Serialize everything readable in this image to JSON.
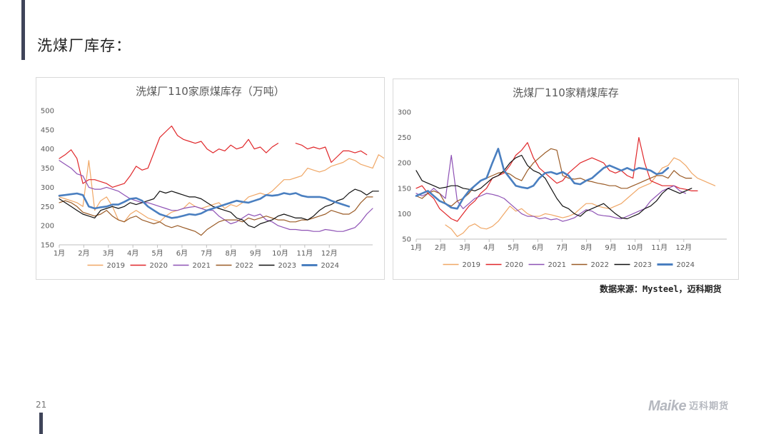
{
  "page": {
    "title": "洗煤厂库存：",
    "source": "数据来源：Mysteel，迈科期货",
    "page_number": "21",
    "logo_text": "Maike",
    "logo_cn": "迈科期货"
  },
  "colors": {
    "2019": "#f0a766",
    "2020": "#e0272a",
    "2021": "#8e52b5",
    "2022": "#9a5b26",
    "2023": "#111111",
    "2024": "#4a7fc0"
  },
  "chart_data": [
    {
      "type": "line",
      "title": "洗煤厂110家原煤库存（万吨）",
      "x_tick_labels": [
        "1月",
        "2月",
        "3月",
        "4月",
        "5月",
        "6月",
        "7月",
        "8月",
        "9月",
        "10月",
        "11月",
        "12月"
      ],
      "ylim": [
        150,
        500
      ],
      "yticks": [
        150,
        200,
        250,
        300,
        350,
        400,
        450,
        500
      ],
      "grid": false,
      "legend": "bottom",
      "series": [
        {
          "name": "2019",
          "color": "#f0a766",
          "width": 1.2,
          "values": [
            275,
            270,
            265,
            260,
            250,
            370,
            240,
            265,
            275,
            250,
            215,
            210,
            230,
            240,
            230,
            220,
            215,
            210,
            225,
            235,
            240,
            245,
            260,
            250,
            245,
            250,
            255,
            260,
            245,
            255,
            250,
            260,
            275,
            280,
            285,
            280,
            290,
            305,
            320,
            320,
            325,
            330,
            350,
            345,
            340,
            345,
            355,
            360,
            365,
            375,
            370,
            360,
            355,
            350,
            385,
            375
          ]
        },
        {
          "name": "2020",
          "color": "#e0272a",
          "width": 1.2,
          "values": [
            375,
            385,
            398,
            375,
            310,
            320,
            320,
            315,
            310,
            300,
            305,
            310,
            330,
            355,
            345,
            350,
            390,
            430,
            445,
            460,
            435,
            425,
            420,
            415,
            420,
            400,
            390,
            400,
            395,
            410,
            400,
            405,
            425,
            400,
            405,
            390,
            405,
            415,
            null,
            null,
            415,
            410,
            400,
            405,
            400,
            405,
            365,
            380,
            395,
            395,
            390,
            395,
            385
          ]
        },
        {
          "name": "2021",
          "color": "#8e52b5",
          "width": 1.2,
          "values": [
            370,
            360,
            350,
            335,
            330,
            300,
            295,
            295,
            300,
            295,
            290,
            280,
            270,
            265,
            260,
            260,
            255,
            250,
            245,
            240,
            240,
            245,
            248,
            250,
            245,
            240,
            240,
            225,
            215,
            205,
            210,
            220,
            230,
            225,
            230,
            215,
            210,
            200,
            195,
            190,
            190,
            188,
            188,
            185,
            185,
            190,
            188,
            185,
            185,
            190,
            195,
            210,
            230,
            245
          ]
        },
        {
          "name": "2022",
          "color": "#9a5b26",
          "width": 1.2,
          "values": [
            260,
            265,
            260,
            250,
            235,
            230,
            225,
            230,
            240,
            225,
            215,
            210,
            220,
            225,
            215,
            210,
            205,
            210,
            200,
            195,
            200,
            195,
            190,
            185,
            175,
            190,
            200,
            210,
            215,
            215,
            215,
            210,
            220,
            215,
            220,
            225,
            220,
            215,
            215,
            210,
            210,
            215,
            215,
            220,
            225,
            230,
            240,
            235,
            230,
            230,
            240,
            260,
            275,
            275
          ]
        },
        {
          "name": "2023",
          "color": "#111111",
          "width": 1.2,
          "values": [
            270,
            260,
            250,
            240,
            230,
            225,
            220,
            240,
            245,
            250,
            245,
            250,
            260,
            255,
            260,
            265,
            270,
            290,
            285,
            290,
            285,
            280,
            275,
            275,
            270,
            260,
            250,
            245,
            240,
            235,
            220,
            215,
            200,
            195,
            205,
            210,
            215,
            225,
            230,
            225,
            220,
            220,
            215,
            225,
            240,
            250,
            255,
            265,
            270,
            285,
            295,
            290,
            280,
            290,
            290
          ]
        },
        {
          "name": "2024",
          "color": "#4a7fc0",
          "width": 2.6,
          "values": [
            278,
            280,
            282,
            284,
            280,
            250,
            245,
            248,
            250,
            255,
            255,
            262,
            270,
            272,
            265,
            250,
            240,
            230,
            225,
            220,
            222,
            226,
            230,
            228,
            232,
            240,
            245,
            250,
            255,
            260,
            265,
            262,
            260,
            265,
            270,
            280,
            278,
            280,
            285,
            282,
            285,
            278,
            275,
            275,
            275,
            272,
            265,
            260,
            255,
            250
          ]
        }
      ]
    },
    {
      "type": "line",
      "title": "洗煤厂110家精煤库存",
      "x_tick_labels": [
        "1月",
        "2月",
        "3月",
        "4月",
        "5月",
        "6月",
        "7月",
        "8月",
        "9月",
        "10月",
        "11月",
        "12月"
      ],
      "ylim": [
        50,
        300
      ],
      "yticks": [
        50,
        100,
        150,
        200,
        250,
        300
      ],
      "grid": false,
      "legend": "bottom",
      "series": [
        {
          "name": "2019",
          "color": "#f0a766",
          "width": 1.2,
          "values": [
            null,
            null,
            null,
            null,
            null,
            78,
            70,
            55,
            62,
            75,
            80,
            72,
            70,
            75,
            85,
            100,
            115,
            105,
            110,
            100,
            95,
            95,
            100,
            98,
            95,
            92,
            95,
            100,
            110,
            120,
            120,
            115,
            112,
            110,
            115,
            120,
            130,
            140,
            150,
            155,
            160,
            175,
            190,
            195,
            210,
            205,
            195,
            180,
            170,
            165,
            160,
            155
          ]
        },
        {
          "name": "2020",
          "color": "#e0272a",
          "width": 1.2,
          "values": [
            150,
            155,
            140,
            130,
            110,
            100,
            90,
            85,
            100,
            115,
            125,
            140,
            150,
            170,
            175,
            180,
            195,
            215,
            225,
            240,
            210,
            190,
            180,
            170,
            160,
            165,
            180,
            190,
            200,
            205,
            210,
            205,
            200,
            185,
            180,
            185,
            175,
            170,
            250,
            200,
            165,
            160,
            155,
            155,
            155,
            150,
            148,
            145,
            145
          ]
        },
        {
          "name": "2021",
          "color": "#8e52b5",
          "width": 1.2,
          "values": [
            140,
            135,
            140,
            150,
            140,
            130,
            215,
            125,
            110,
            120,
            130,
            135,
            140,
            138,
            135,
            130,
            120,
            110,
            100,
            95,
            95,
            90,
            92,
            88,
            90,
            85,
            88,
            92,
            100,
            108,
            105,
            98,
            96,
            95,
            92,
            90,
            95,
            100,
            105,
            110,
            125,
            135,
            145,
            150,
            155,
            145,
            140
          ]
        },
        {
          "name": "2022",
          "color": "#9a5b26",
          "width": 1.2,
          "values": [
            135,
            130,
            140,
            145,
            140,
            120,
            115,
            125,
            130,
            140,
            155,
            165,
            170,
            175,
            180,
            182,
            178,
            170,
            165,
            185,
            200,
            210,
            220,
            228,
            225,
            175,
            170,
            168,
            170,
            165,
            163,
            160,
            158,
            155,
            155,
            150,
            150,
            155,
            160,
            165,
            170,
            175,
            175,
            170,
            185,
            175,
            170,
            170
          ]
        },
        {
          "name": "2023",
          "color": "#111111",
          "width": 1.2,
          "values": [
            185,
            165,
            160,
            155,
            150,
            152,
            155,
            155,
            150,
            148,
            145,
            150,
            160,
            170,
            175,
            185,
            200,
            210,
            215,
            195,
            185,
            180,
            170,
            150,
            130,
            115,
            110,
            100,
            95,
            105,
            110,
            115,
            120,
            110,
            100,
            92,
            90,
            95,
            100,
            110,
            115,
            125,
            140,
            150,
            145,
            140,
            145,
            150
          ]
        },
        {
          "name": "2024",
          "color": "#4a7fc0",
          "width": 2.6,
          "values": [
            135,
            140,
            145,
            135,
            125,
            120,
            112,
            110,
            130,
            145,
            155,
            165,
            170,
            200,
            228,
            185,
            170,
            155,
            152,
            150,
            155,
            170,
            180,
            182,
            178,
            182,
            175,
            160,
            158,
            165,
            170,
            180,
            190,
            195,
            190,
            185,
            190,
            185,
            190,
            188,
            185,
            178,
            180,
            190
          ]
        }
      ]
    }
  ]
}
